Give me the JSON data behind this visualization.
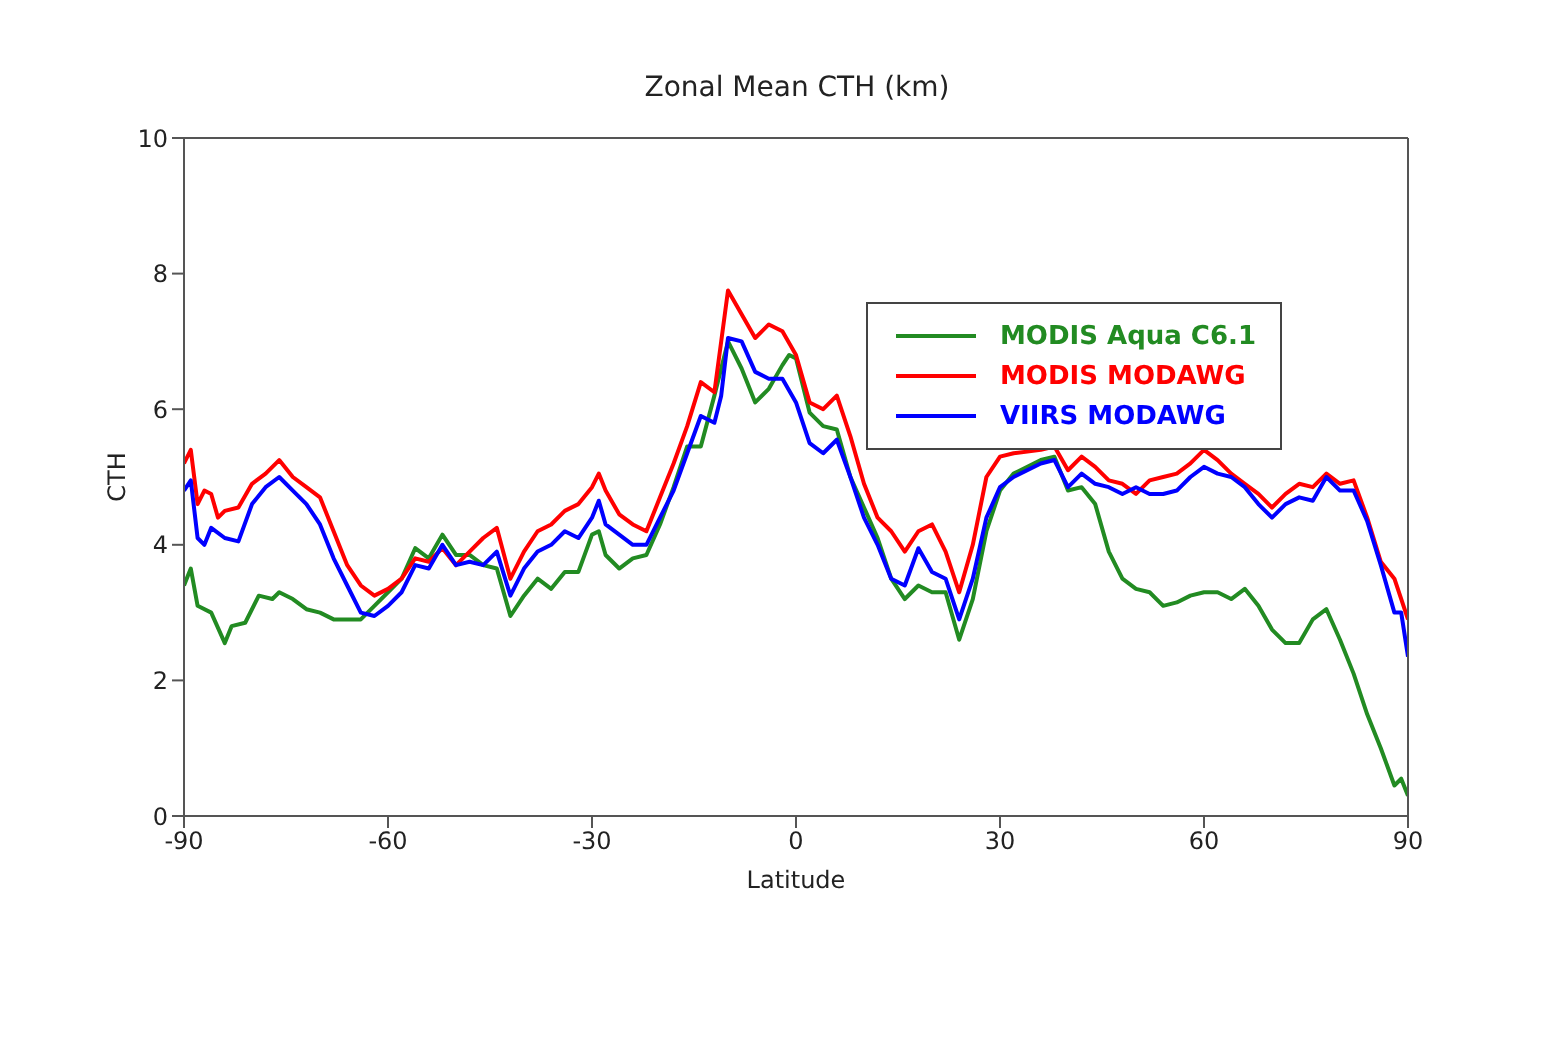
{
  "chart_data": {
    "type": "line",
    "title": "Zonal Mean CTH (km)",
    "xlabel": "Latitude",
    "ylabel": "CTH",
    "xlim": [
      -90,
      90
    ],
    "xticks": [
      -90,
      -60,
      -30,
      0,
      30,
      60,
      90
    ],
    "ylim": [
      0,
      10
    ],
    "yticks": [
      0,
      2,
      4,
      6,
      8,
      10
    ],
    "grid": false,
    "legend": "top right",
    "marker": "none",
    "line_style": "solid",
    "series": [
      {
        "name": "MODIS Aqua C6.1",
        "color": "#228b22",
        "x": [
          -90,
          -89,
          -88,
          -86,
          -84,
          -83,
          -81,
          -79,
          -77,
          -76,
          -74,
          -72,
          -70,
          -68,
          -66,
          -64,
          -62,
          -60,
          -58,
          -56,
          -54,
          -52,
          -50,
          -48,
          -46,
          -44,
          -42,
          -40,
          -38,
          -36,
          -34,
          -32,
          -30,
          -29,
          -28,
          -26,
          -24,
          -22,
          -20,
          -18,
          -16,
          -14,
          -12,
          -11,
          -10,
          -8,
          -6,
          -4,
          -2,
          -1,
          0,
          2,
          4,
          6,
          8,
          10,
          12,
          14,
          16,
          18,
          20,
          22,
          24,
          26,
          28,
          30,
          32,
          36,
          38,
          40,
          42,
          44,
          46,
          48,
          50,
          52,
          54,
          56,
          58,
          60,
          62,
          64,
          66,
          68,
          70,
          72,
          74,
          76,
          78,
          80,
          82,
          84,
          86,
          88,
          89,
          90
        ],
        "values": [
          3.4,
          3.65,
          3.1,
          3.0,
          2.55,
          2.8,
          2.85,
          3.25,
          3.2,
          3.3,
          3.2,
          3.05,
          3.0,
          2.9,
          2.9,
          2.9,
          3.1,
          3.3,
          3.5,
          3.95,
          3.8,
          4.15,
          3.85,
          3.85,
          3.7,
          3.65,
          2.95,
          3.25,
          3.5,
          3.35,
          3.6,
          3.6,
          4.15,
          4.2,
          3.85,
          3.65,
          3.8,
          3.85,
          4.3,
          4.85,
          5.45,
          5.45,
          6.2,
          6.6,
          7.0,
          6.6,
          6.1,
          6.3,
          6.65,
          6.8,
          6.75,
          5.95,
          5.75,
          5.7,
          5.0,
          4.55,
          4.1,
          3.5,
          3.2,
          3.4,
          3.3,
          3.3,
          2.6,
          3.2,
          4.2,
          4.8,
          5.05,
          5.25,
          5.3,
          4.8,
          4.85,
          4.6,
          3.9,
          3.5,
          3.35,
          3.3,
          3.1,
          3.15,
          3.25,
          3.3,
          3.3,
          3.2,
          3.35,
          3.1,
          2.75,
          2.55,
          2.55,
          2.9,
          3.05,
          2.6,
          2.1,
          1.5,
          1.0,
          0.45,
          0.55,
          0.3
        ]
      },
      {
        "name": "MODIS MODAWG",
        "color": "#ff0000",
        "x": [
          -90,
          -89,
          -88,
          -87,
          -86,
          -85,
          -84,
          -82,
          -80,
          -78,
          -76,
          -74,
          -72,
          -70,
          -68,
          -66,
          -64,
          -62,
          -60,
          -58,
          -56,
          -54,
          -52,
          -50,
          -48,
          -46,
          -44,
          -42,
          -40,
          -38,
          -36,
          -34,
          -32,
          -30,
          -29,
          -28,
          -26,
          -24,
          -22,
          -20,
          -18,
          -16,
          -14,
          -12,
          -11,
          -10,
          -8,
          -6,
          -4,
          -2,
          0,
          2,
          4,
          6,
          8,
          10,
          12,
          14,
          16,
          18,
          20,
          22,
          24,
          26,
          28,
          30,
          32,
          36,
          38,
          40,
          42,
          44,
          46,
          48,
          50,
          52,
          54,
          56,
          58,
          60,
          62,
          64,
          66,
          68,
          70,
          72,
          74,
          76,
          78,
          80,
          82,
          84,
          86,
          88,
          90
        ],
        "values": [
          5.2,
          5.4,
          4.6,
          4.8,
          4.75,
          4.4,
          4.5,
          4.55,
          4.9,
          5.05,
          5.25,
          5.0,
          4.85,
          4.7,
          4.2,
          3.7,
          3.4,
          3.25,
          3.35,
          3.5,
          3.8,
          3.75,
          3.95,
          3.7,
          3.9,
          4.1,
          4.25,
          3.5,
          3.9,
          4.2,
          4.3,
          4.5,
          4.6,
          4.85,
          5.05,
          4.8,
          4.45,
          4.3,
          4.2,
          4.7,
          5.2,
          5.75,
          6.4,
          6.25,
          7.0,
          7.75,
          7.4,
          7.05,
          7.25,
          7.15,
          6.8,
          6.1,
          6.0,
          6.2,
          5.6,
          4.9,
          4.4,
          4.2,
          3.9,
          4.2,
          4.3,
          3.9,
          3.3,
          4.0,
          5.0,
          5.3,
          5.35,
          5.4,
          5.45,
          5.1,
          5.3,
          5.15,
          4.95,
          4.9,
          4.75,
          4.95,
          5.0,
          5.05,
          5.2,
          5.4,
          5.25,
          5.05,
          4.9,
          4.75,
          4.55,
          4.75,
          4.9,
          4.85,
          5.05,
          4.9,
          4.95,
          4.4,
          3.75,
          3.5,
          2.9
        ]
      },
      {
        "name": "VIIRS MODAWG",
        "color": "#0000ff",
        "x": [
          -90,
          -89,
          -88,
          -87,
          -86,
          -84,
          -82,
          -80,
          -78,
          -76,
          -74,
          -72,
          -70,
          -68,
          -66,
          -64,
          -62,
          -60,
          -58,
          -56,
          -54,
          -52,
          -50,
          -48,
          -46,
          -44,
          -42,
          -40,
          -38,
          -36,
          -34,
          -32,
          -30,
          -29,
          -28,
          -26,
          -24,
          -22,
          -20,
          -18,
          -16,
          -14,
          -12,
          -11,
          -10,
          -8,
          -6,
          -4,
          -2,
          0,
          2,
          4,
          6,
          8,
          10,
          12,
          14,
          16,
          18,
          20,
          22,
          24,
          26,
          28,
          30,
          32,
          36,
          38,
          40,
          42,
          44,
          46,
          48,
          50,
          52,
          54,
          56,
          58,
          60,
          62,
          64,
          66,
          68,
          70,
          72,
          74,
          76,
          78,
          80,
          82,
          84,
          86,
          88,
          89,
          90
        ],
        "values": [
          4.8,
          4.95,
          4.1,
          4.0,
          4.25,
          4.1,
          4.05,
          4.6,
          4.85,
          5.0,
          4.8,
          4.6,
          4.3,
          3.8,
          3.4,
          3.0,
          2.95,
          3.1,
          3.3,
          3.7,
          3.65,
          4.0,
          3.7,
          3.75,
          3.7,
          3.9,
          3.25,
          3.65,
          3.9,
          4.0,
          4.2,
          4.1,
          4.4,
          4.65,
          4.3,
          4.15,
          4.0,
          4.0,
          4.4,
          4.8,
          5.35,
          5.9,
          5.8,
          6.2,
          7.05,
          7.0,
          6.55,
          6.45,
          6.45,
          6.1,
          5.5,
          5.35,
          5.55,
          5.0,
          4.4,
          4.0,
          3.5,
          3.4,
          3.95,
          3.6,
          3.5,
          2.9,
          3.5,
          4.4,
          4.85,
          5.0,
          5.2,
          5.25,
          4.85,
          5.05,
          4.9,
          4.85,
          4.75,
          4.85,
          4.75,
          4.75,
          4.8,
          5.0,
          5.15,
          5.05,
          5.0,
          4.85,
          4.6,
          4.4,
          4.6,
          4.7,
          4.65,
          5.0,
          4.8,
          4.8,
          4.35,
          3.7,
          3.0,
          3.0,
          2.35
        ]
      }
    ]
  }
}
